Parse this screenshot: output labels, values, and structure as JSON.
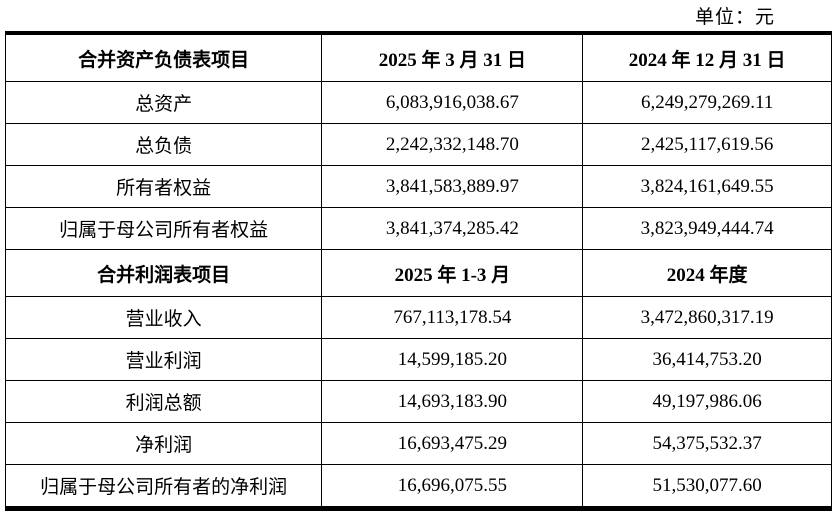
{
  "unit_label": "单位：元",
  "table": {
    "sections": [
      {
        "header": [
          "合并资产负债表项目",
          "2025 年 3 月 31 日",
          "2024 年 12 月 31 日"
        ],
        "rows": [
          [
            "总资产",
            "6,083,916,038.67",
            "6,249,279,269.11"
          ],
          [
            "总负债",
            "2,242,332,148.70",
            "2,425,117,619.56"
          ],
          [
            "所有者权益",
            "3,841,583,889.97",
            "3,824,161,649.55"
          ],
          [
            "归属于母公司所有者权益",
            "3,841,374,285.42",
            "3,823,949,444.74"
          ]
        ]
      },
      {
        "header": [
          "合并利润表项目",
          "2025 年 1-3 月",
          "2024 年度"
        ],
        "rows": [
          [
            "营业收入",
            "767,113,178.54",
            "3,472,860,317.19"
          ],
          [
            "营业利润",
            "14,599,185.20",
            "36,414,753.20"
          ],
          [
            "利润总额",
            "14,693,183.90",
            "49,197,986.06"
          ],
          [
            "净利润",
            "16,693,475.29",
            "54,375,532.37"
          ],
          [
            "归属于母公司所有者的净利润",
            "16,696,075.55",
            "51,530,077.60"
          ]
        ]
      }
    ]
  }
}
